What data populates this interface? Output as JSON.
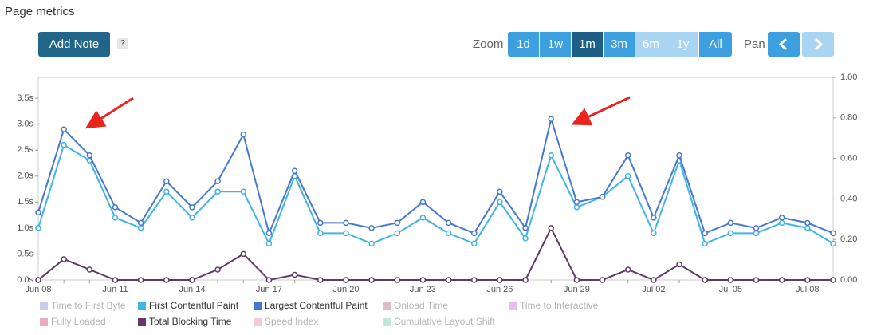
{
  "header": {
    "title": "Page metrics",
    "add_note": "Add Note",
    "help": "?"
  },
  "zoom": {
    "label": "Zoom",
    "buttons": [
      "1d",
      "1w",
      "1m",
      "3m",
      "6m",
      "1y",
      "All"
    ],
    "active": "1m",
    "disabled": [
      "6m",
      "1y"
    ]
  },
  "pan": {
    "label": "Pan"
  },
  "chart_data": {
    "type": "line",
    "categories": [
      "Jun 08",
      null,
      null,
      "Jun 11",
      null,
      null,
      "Jun 14",
      null,
      null,
      "Jun 17",
      null,
      null,
      "Jun 20",
      null,
      null,
      "Jun 23",
      null,
      null,
      "Jun 26",
      null,
      null,
      "Jun 29",
      null,
      null,
      "Jul 02",
      null,
      null,
      "Jul 05",
      null,
      null,
      "Jul 08",
      null
    ],
    "ylim": [
      0,
      3.9
    ],
    "yticks": [
      {
        "value": 0,
        "label": "0.0s"
      },
      {
        "value": 0.5,
        "label": "0.5s"
      },
      {
        "value": 1,
        "label": "1.0s"
      },
      {
        "value": 1.5,
        "label": "1.5s"
      },
      {
        "value": 2,
        "label": "2.0s"
      },
      {
        "value": 2.5,
        "label": "2.5s"
      },
      {
        "value": 3,
        "label": "3.0s"
      },
      {
        "value": 3.5,
        "label": "3.5s"
      }
    ],
    "y2lim": [
      0,
      1
    ],
    "y2ticks": [
      {
        "value": 0,
        "label": "0.00"
      },
      {
        "value": 0.2,
        "label": "0.20"
      },
      {
        "value": 0.4,
        "label": "0.40"
      },
      {
        "value": 0.6,
        "label": "0.60"
      },
      {
        "value": 0.8,
        "label": "0.80"
      },
      {
        "value": 1,
        "label": "1.00"
      }
    ],
    "series": [
      {
        "name": "Time to First Byte",
        "color": "#b9c3e0",
        "visible": false
      },
      {
        "name": "First Contentful Paint",
        "color": "#3fb4e6",
        "visible": true,
        "values": [
          1.0,
          2.6,
          2.3,
          1.2,
          1.0,
          1.7,
          1.2,
          1.7,
          1.7,
          0.7,
          2.0,
          0.9,
          0.9,
          0.7,
          0.9,
          1.2,
          0.9,
          0.7,
          1.5,
          0.8,
          2.4,
          1.4,
          1.6,
          2.0,
          0.9,
          2.3,
          0.7,
          0.9,
          0.9,
          1.1,
          1.0,
          0.7
        ]
      },
      {
        "name": "Largest Contentful Paint",
        "color": "#4677d6",
        "visible": true,
        "values": [
          1.3,
          2.9,
          2.4,
          1.4,
          1.1,
          1.9,
          1.4,
          1.9,
          2.8,
          0.9,
          2.1,
          1.1,
          1.1,
          1.0,
          1.1,
          1.5,
          1.1,
          0.9,
          1.7,
          1.0,
          3.1,
          1.5,
          1.6,
          2.4,
          1.2,
          2.4,
          0.9,
          1.1,
          1.0,
          1.2,
          1.1,
          0.9
        ]
      },
      {
        "name": "Onload Time",
        "color": "#dcaab7",
        "visible": false
      },
      {
        "name": "Time to Interactive",
        "color": "#dbb0e6",
        "visible": false
      },
      {
        "name": "Fully Loaded",
        "color": "#e495ac",
        "visible": false
      },
      {
        "name": "Total Blocking Time",
        "color": "#5e3c66",
        "visible": true,
        "values": [
          0,
          0.4,
          0.2,
          0,
          0,
          0,
          0,
          0.2,
          0.5,
          0,
          0.1,
          0,
          0,
          0,
          0,
          0,
          0,
          0,
          0,
          0,
          1.0,
          0,
          0,
          0.2,
          0,
          0.3,
          0,
          0,
          0,
          0,
          0,
          0
        ]
      },
      {
        "name": "Speed Index",
        "color": "#f3bcd4",
        "visible": false
      },
      {
        "name": "Cumulative Layout Shift",
        "color": "#ade3cf",
        "visible": false
      }
    ]
  }
}
